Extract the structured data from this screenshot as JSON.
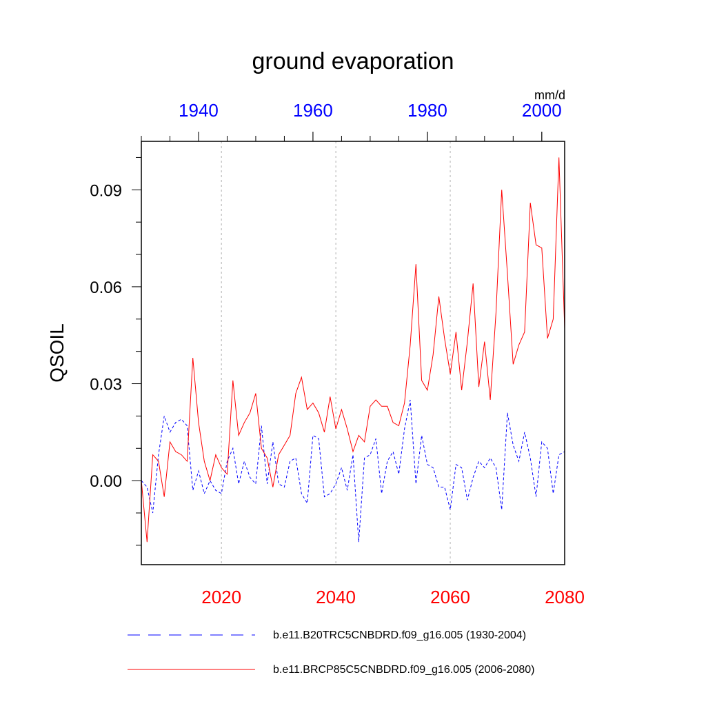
{
  "chart_data": {
    "type": "line",
    "title": "ground evaporation",
    "ylabel": "QSOIL",
    "units": "mm/d",
    "ylim": [
      -0.026,
      0.105
    ],
    "yticks": [
      0.0,
      0.03,
      0.06,
      0.09
    ],
    "ytick_labels": [
      "0.00",
      "0.03",
      "0.06",
      "0.09"
    ],
    "bottom_axis": {
      "range": [
        2006,
        2080
      ],
      "ticks": [
        2020,
        2040,
        2060,
        2080
      ],
      "tick_labels": [
        "2020",
        "2040",
        "2060",
        "2080"
      ],
      "color": "#ff0000"
    },
    "top_axis": {
      "range": [
        1930,
        2004
      ],
      "ticks": [
        1940,
        1960,
        1980,
        2000
      ],
      "tick_labels": [
        "1940",
        "1960",
        "1980",
        "2000"
      ],
      "color": "#0000ff"
    },
    "series": [
      {
        "name": "b.e11.B20TRC5CNBDRD.f09_g16.005 (1930-2004)",
        "color": "#0000ff",
        "style": "dashed",
        "x": [
          1930,
          1931,
          1932,
          1933,
          1934,
          1935,
          1936,
          1937,
          1938,
          1939,
          1940,
          1941,
          1942,
          1943,
          1944,
          1945,
          1946,
          1947,
          1948,
          1949,
          1950,
          1951,
          1952,
          1953,
          1954,
          1955,
          1956,
          1957,
          1958,
          1959,
          1960,
          1961,
          1962,
          1963,
          1964,
          1965,
          1966,
          1967,
          1968,
          1969,
          1970,
          1971,
          1972,
          1973,
          1974,
          1975,
          1976,
          1977,
          1978,
          1979,
          1980,
          1981,
          1982,
          1983,
          1984,
          1985,
          1986,
          1987,
          1988,
          1989,
          1990,
          1991,
          1992,
          1993,
          1994,
          1995,
          1996,
          1997,
          1998,
          1999,
          2000,
          2001,
          2002,
          2003,
          2004
        ],
        "values": [
          0.0,
          -0.002,
          -0.01,
          0.008,
          0.02,
          0.015,
          0.018,
          0.019,
          0.017,
          -0.003,
          0.003,
          -0.004,
          0.0,
          -0.003,
          -0.004,
          0.006,
          0.01,
          -0.001,
          0.006,
          0.001,
          -0.001,
          0.017,
          -0.001,
          0.012,
          -0.001,
          -0.002,
          0.006,
          0.007,
          -0.004,
          -0.007,
          0.014,
          0.013,
          -0.005,
          -0.004,
          -0.001,
          0.004,
          -0.003,
          0.008,
          -0.019,
          0.007,
          0.008,
          0.013,
          -0.004,
          0.006,
          0.009,
          0.002,
          0.016,
          0.025,
          -0.001,
          0.014,
          0.005,
          0.004,
          -0.002,
          -0.002,
          -0.009,
          0.005,
          0.004,
          -0.006,
          0.001,
          0.006,
          0.004,
          0.007,
          0.004,
          -0.009,
          0.021,
          0.011,
          0.006,
          0.015,
          0.007,
          -0.005,
          0.012,
          0.01,
          -0.004,
          0.008,
          0.009
        ]
      },
      {
        "name": "b.e11.BRCP85C5CNBDRD.f09_g16.005 (2006-2080)",
        "color": "#ff0000",
        "style": "solid",
        "x": [
          2006,
          2007,
          2008,
          2009,
          2010,
          2011,
          2012,
          2013,
          2014,
          2015,
          2016,
          2017,
          2018,
          2019,
          2020,
          2021,
          2022,
          2023,
          2024,
          2025,
          2026,
          2027,
          2028,
          2029,
          2030,
          2031,
          2032,
          2033,
          2034,
          2035,
          2036,
          2037,
          2038,
          2039,
          2040,
          2041,
          2042,
          2043,
          2044,
          2045,
          2046,
          2047,
          2048,
          2049,
          2050,
          2051,
          2052,
          2053,
          2054,
          2055,
          2056,
          2057,
          2058,
          2059,
          2060,
          2061,
          2062,
          2063,
          2064,
          2065,
          2066,
          2067,
          2068,
          2069,
          2070,
          2071,
          2072,
          2073,
          2074,
          2075,
          2076,
          2077,
          2078,
          2079,
          2080
        ],
        "values": [
          0.0,
          -0.019,
          0.008,
          0.006,
          -0.005,
          0.012,
          0.009,
          0.008,
          0.006,
          0.038,
          0.018,
          0.006,
          0.0,
          0.008,
          0.004,
          0.002,
          0.031,
          0.014,
          0.018,
          0.021,
          0.027,
          0.01,
          0.007,
          -0.002,
          0.008,
          0.011,
          0.014,
          0.027,
          0.032,
          0.022,
          0.024,
          0.021,
          0.015,
          0.026,
          0.016,
          0.022,
          0.016,
          0.009,
          0.014,
          0.012,
          0.023,
          0.025,
          0.023,
          0.023,
          0.018,
          0.017,
          0.024,
          0.042,
          0.067,
          0.031,
          0.028,
          0.039,
          0.057,
          0.044,
          0.033,
          0.046,
          0.028,
          0.043,
          0.061,
          0.029,
          0.043,
          0.025,
          0.052,
          0.09,
          0.064,
          0.036,
          0.042,
          0.046,
          0.086,
          0.073,
          0.072,
          0.044,
          0.05,
          0.1,
          0.047
        ]
      }
    ]
  }
}
